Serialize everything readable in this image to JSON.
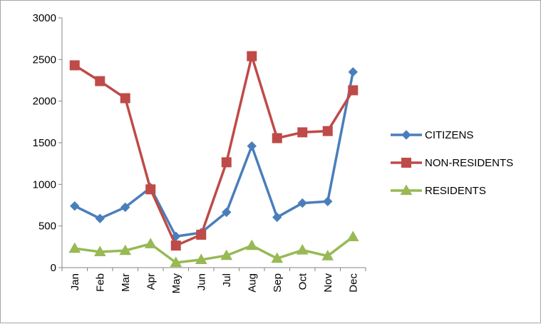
{
  "chart_data": {
    "type": "line",
    "title": "",
    "xlabel": "",
    "ylabel": "",
    "categories": [
      "Jan",
      "Feb",
      "Mar",
      "Apr",
      "May",
      "Jun",
      "Jul",
      "Aug",
      "Sep",
      "Oct",
      "Nov",
      "Dec"
    ],
    "ylim": [
      0,
      3000
    ],
    "yticks": [
      0,
      500,
      1000,
      1500,
      2000,
      2500,
      3000
    ],
    "grid": false,
    "legend_position": "right",
    "series": [
      {
        "name": "CITIZENS",
        "color": "#4a7ebb",
        "marker": "diamond",
        "values": [
          740,
          590,
          725,
          960,
          375,
          420,
          665,
          1460,
          605,
          775,
          795,
          2350
        ]
      },
      {
        "name": "NON-RESIDENTS",
        "color": "#be4b48",
        "marker": "square",
        "values": [
          2430,
          2240,
          2035,
          940,
          265,
          395,
          1265,
          2540,
          1555,
          1625,
          1640,
          2130
        ]
      },
      {
        "name": "RESIDENTS",
        "color": "#98b954",
        "marker": "triangle",
        "values": [
          230,
          190,
          205,
          285,
          60,
          95,
          145,
          265,
          110,
          210,
          140,
          370
        ]
      }
    ]
  }
}
